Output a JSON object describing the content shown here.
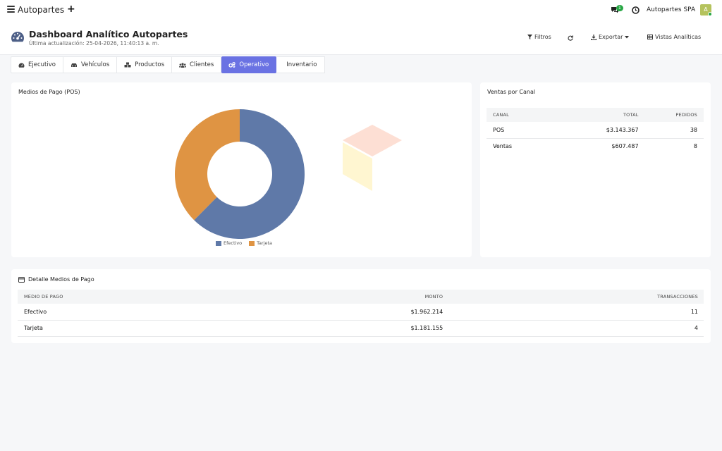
{
  "navbar": {
    "app_title": "Autopartes",
    "notification_count": "1",
    "company_name": "Autopartes SPA",
    "avatar_initial": "A"
  },
  "header": {
    "title": "Dashboard Analítico Autopartes",
    "last_update": "Última actualización: 25-04-2026, 11:40:13 a. m.",
    "actions": {
      "filters": "Filtros",
      "export": "Exportar",
      "views": "Vistas Analíticas"
    }
  },
  "tabs": [
    {
      "label": "Ejecutivo",
      "icon": "gauge-icon",
      "active": false
    },
    {
      "label": "Vehículos",
      "icon": "car-icon",
      "active": false
    },
    {
      "label": "Productos",
      "icon": "boxes-icon",
      "active": false
    },
    {
      "label": "Clientes",
      "icon": "users-icon",
      "active": false
    },
    {
      "label": "Operativo",
      "icon": "cogs-icon",
      "active": true
    },
    {
      "label": "Inventario",
      "icon": "",
      "active": false
    }
  ],
  "payment_chart": {
    "title": "Medios de Pago (POS)"
  },
  "chart_data": {
    "type": "pie",
    "title": "Medios de Pago (POS)",
    "categories": [
      "Efectivo",
      "Tarjeta"
    ],
    "values": [
      1962214,
      1181155
    ],
    "colors": [
      "#5f79a8",
      "#df9443"
    ],
    "legend_position": "bottom"
  },
  "channel_sales": {
    "title": "Ventas por Canal",
    "columns": [
      "CANAL",
      "TOTAL",
      "PEDIDOS"
    ],
    "rows": [
      {
        "canal": "POS",
        "total": "$3.143.367",
        "pedidos": "38"
      },
      {
        "canal": "Ventas",
        "total": "$607.487",
        "pedidos": "8"
      }
    ]
  },
  "payment_detail": {
    "title": "Detalle Medios de Pago",
    "columns": [
      "MEDIO DE PAGO",
      "MONTO",
      "TRANSACCIONES"
    ],
    "rows": [
      {
        "medio": "Efectivo",
        "monto": "$1.962.214",
        "transacciones": "11"
      },
      {
        "medio": "Tarjeta",
        "monto": "$1.181.155",
        "transacciones": "4"
      }
    ]
  },
  "colors": {
    "accent": "#6a72e3",
    "badge": "#28a745",
    "efectivo": "#5f79a8",
    "tarjeta": "#df9443"
  }
}
